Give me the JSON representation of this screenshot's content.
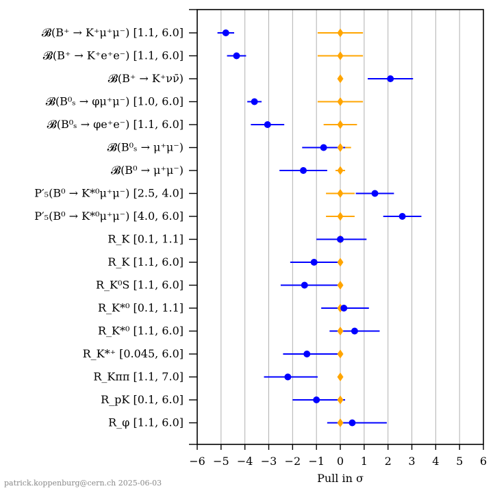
{
  "chart_data": {
    "type": "scatter",
    "xlabel": "Pull in σ",
    "xlim": [
      -6,
      6
    ],
    "xticks": [
      "−6",
      "−5",
      "−4",
      "−3",
      "−2",
      "−1",
      "0",
      "1",
      "2",
      "3",
      "4",
      "5",
      "6"
    ],
    "grid": "vertical",
    "categories": [
      "𝓑(B⁺ → K⁺μ⁺μ⁻) [1.1, 6.0]",
      "𝓑(B⁺ → K⁺e⁺e⁻) [1.1, 6.0]",
      "𝓑(B⁺ → K⁺νν̄)",
      "𝓑(B⁰ₛ → φμ⁺μ⁻) [1.0, 6.0]",
      "𝓑(B⁰ₛ → φe⁺e⁻) [1.1, 6.0]",
      "𝓑(B⁰ₛ → μ⁺μ⁻)",
      "𝓑(B⁰ → μ⁺μ⁻)",
      "P′₅(B⁰ → K*⁰μ⁺μ⁻) [2.5, 4.0]",
      "P′₅(B⁰ → K*⁰μ⁺μ⁻) [4.0, 6.0]",
      "R_K [0.1, 1.1]",
      "R_K [1.1, 6.0]",
      "R_K⁰S [1.1, 6.0]",
      "R_K*⁰ [0.1, 1.1]",
      "R_K*⁰ [1.1, 6.0]",
      "R_K*⁺ [0.045, 6.0]",
      "R_Kππ [1.1, 7.0]",
      "R_pK [0.1, 6.0]",
      "R_φ [1.1, 6.0]"
    ],
    "series": [
      {
        "color": "#0000ff",
        "marker": "circle",
        "values": [
          -4.8,
          -4.35,
          2.1,
          -3.6,
          -3.05,
          -0.7,
          -1.55,
          1.45,
          2.6,
          0.0,
          -1.1,
          -1.5,
          0.15,
          0.6,
          -1.4,
          -2.2,
          -1.0,
          0.5
        ],
        "err_low": [
          0.35,
          0.4,
          0.95,
          0.3,
          0.7,
          0.9,
          1.0,
          0.8,
          0.8,
          1.0,
          1.0,
          1.0,
          0.95,
          1.05,
          1.0,
          1.0,
          1.0,
          1.05
        ],
        "err_high": [
          0.35,
          0.4,
          0.95,
          0.3,
          0.7,
          0.9,
          1.0,
          0.8,
          0.8,
          1.1,
          1.1,
          1.5,
          1.05,
          1.05,
          1.4,
          1.25,
          1.2,
          1.45
        ]
      },
      {
        "color": "#ffa500",
        "marker": "diamond",
        "values": [
          0,
          0,
          0,
          0,
          0,
          0,
          0,
          0,
          0,
          0,
          0,
          0,
          0,
          0,
          0,
          0,
          0,
          0
        ],
        "err_low": [
          0.95,
          0.95,
          0.0,
          0.95,
          0.7,
          0.45,
          0.2,
          0.6,
          0.6,
          0.0,
          0.0,
          0.0,
          0.0,
          0.0,
          0.0,
          0.0,
          0.0,
          0.0
        ],
        "err_high": [
          0.95,
          0.95,
          0.0,
          0.95,
          0.7,
          0.45,
          0.2,
          0.6,
          0.6,
          0.0,
          0.0,
          0.0,
          0.0,
          0.0,
          0.0,
          0.0,
          0.0,
          0.0
        ]
      }
    ]
  },
  "footer": {
    "credit": "patrick.koppenburg@cern.ch 2025-06-03"
  }
}
